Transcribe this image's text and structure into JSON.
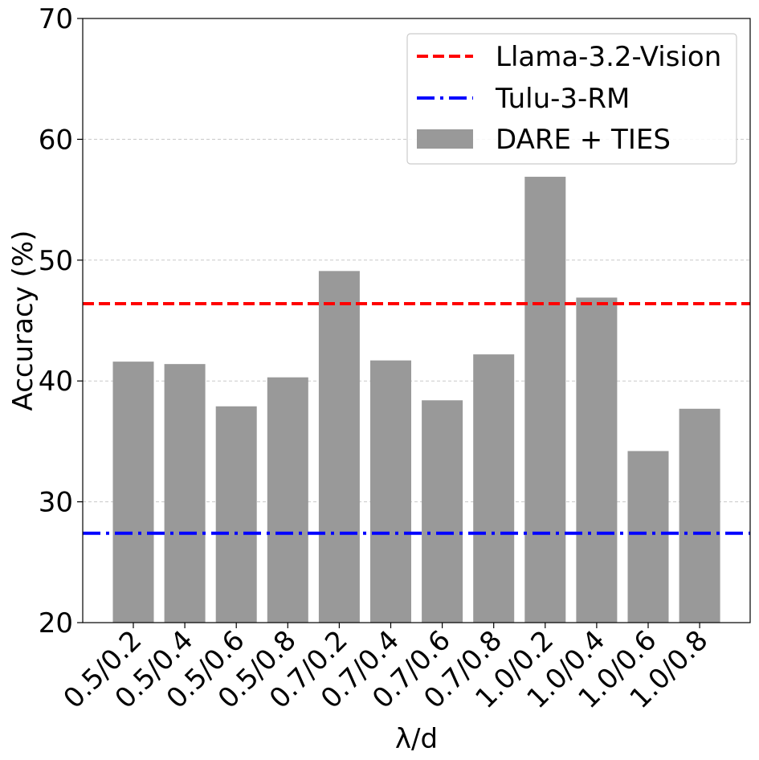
{
  "chart_data": {
    "type": "bar",
    "xlabel": "λ/d",
    "ylabel": "Accuracy (%)",
    "ylim": [
      20,
      70
    ],
    "yticks": [
      20,
      30,
      40,
      50,
      60,
      70
    ],
    "grid": "y-dashed",
    "categories": [
      "0.5/0.2",
      "0.5/0.4",
      "0.5/0.6",
      "0.5/0.8",
      "0.7/0.2",
      "0.7/0.4",
      "0.7/0.6",
      "0.7/0.8",
      "1.0/0.2",
      "1.0/0.4",
      "1.0/0.6",
      "1.0/0.8"
    ],
    "series": [
      {
        "name": "DARE + TIES",
        "values": [
          41.6,
          41.4,
          37.9,
          40.3,
          49.1,
          41.7,
          38.4,
          42.2,
          56.9,
          46.9,
          34.2,
          37.7
        ],
        "color": "#999999"
      }
    ],
    "reference_lines": [
      {
        "name": "Llama-3.2-Vision",
        "value": 46.4,
        "color": "#ff0000",
        "style": "dashed"
      },
      {
        "name": "Tulu-3-RM",
        "value": 27.4,
        "color": "#0000ff",
        "style": "dashdot"
      }
    ],
    "legend": {
      "position": "top-right",
      "entries": [
        "Llama-3.2-Vision",
        "Tulu-3-RM",
        "DARE + TIES"
      ]
    }
  }
}
